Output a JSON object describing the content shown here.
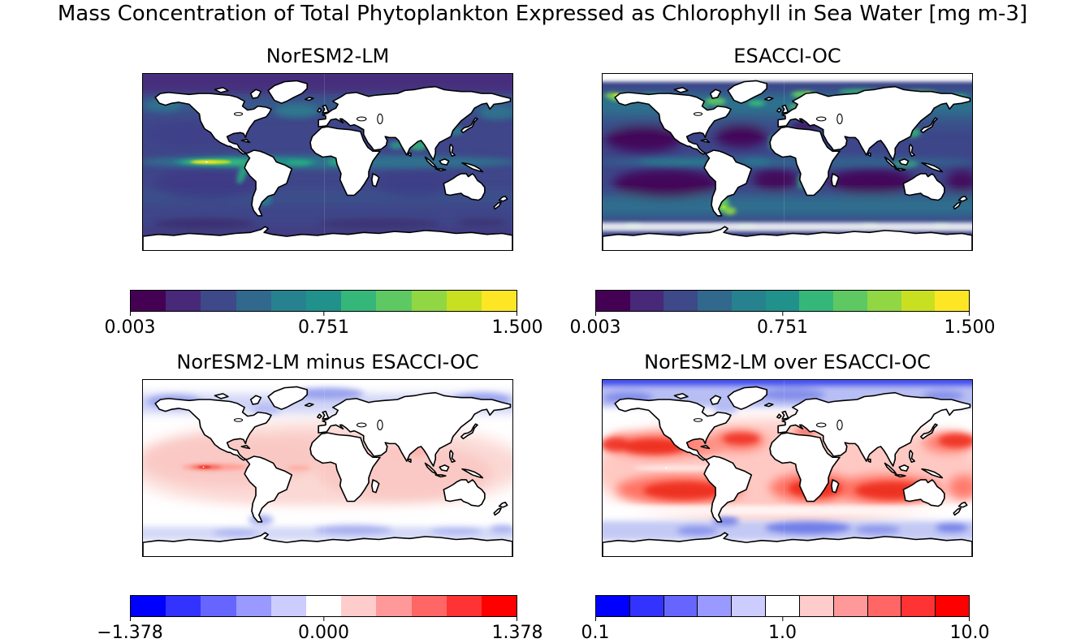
{
  "figure": {
    "title": "Mass Concentration of Total Phytoplankton Expressed as Chlorophyll in Sea Water [mg m-3]",
    "background": "#ffffff",
    "n_panels": 4
  },
  "chart_data": [
    {
      "type": "heatmap",
      "subtype": "global_map",
      "title": "NorESM2-LM",
      "variable": "Mass Concentration of Total Phytoplankton Expressed as Chlorophyll in Sea Water",
      "units": "mg m-3",
      "projection": "equirectangular",
      "land_color": "#ffffff",
      "coastline_color": "#000000",
      "colormap": "viridis",
      "n_levels": 11,
      "vmin": 0.003,
      "vmax": 1.5,
      "colorbar": {
        "orientation": "horizontal",
        "tick_labels": [
          "0.003",
          "0.751",
          "1.500"
        ],
        "tick_values": [
          0.003,
          0.751,
          1.5
        ],
        "cell_borders": false,
        "colors": [
          "#440154",
          "#482878",
          "#3e4989",
          "#31688e",
          "#26828e",
          "#21918c",
          "#35b779",
          "#5ec962",
          "#90d743",
          "#c8e020",
          "#fde725"
        ]
      },
      "features": [
        "bright high-chlorophyll tongue (~1.5 mg m-3, yellow) along the eastern equatorial Pacific",
        "greenish coastal/upwelling maxima near Peru, Gulf of Guinea, Bay of Bengal and Argentine shelf",
        "moderate teal values across mid-latitude oceans",
        "dark purple low values in Arctic band, subtropical gyres and Southern Ocean"
      ]
    },
    {
      "type": "heatmap",
      "subtype": "global_map",
      "title": "ESACCI-OC",
      "variable": "Mass Concentration of Total Phytoplankton Expressed as Chlorophyll in Sea Water",
      "units": "mg m-3",
      "projection": "equirectangular",
      "land_color": "#ffffff",
      "coastline_color": "#000000",
      "colormap": "viridis",
      "n_levels": 11,
      "vmin": 0.003,
      "vmax": 1.5,
      "colorbar": {
        "orientation": "horizontal",
        "tick_labels": [
          "0.003",
          "0.751",
          "1.500"
        ],
        "tick_values": [
          0.003,
          0.751,
          1.5
        ],
        "cell_borders": false,
        "colors": [
          "#440154",
          "#482878",
          "#3e4989",
          "#31688e",
          "#26828e",
          "#21918c",
          "#35b779",
          "#5ec962",
          "#90d743",
          "#c8e020",
          "#fde725"
        ]
      },
      "features": [
        "very dark purple low chlorophyll in the five subtropical gyres",
        "green/yellow high chlorophyll hugging northern high-latitude coasts and shelves",
        "white no-data band over the central Arctic and fringing Antarctica",
        "teal moderate values in subpolar and Southern Ocean waters"
      ]
    },
    {
      "type": "heatmap",
      "subtype": "global_map_difference",
      "title": "NorESM2-LM minus ESACCI-OC",
      "variable": "chlorophyll difference (model minus observations)",
      "units": "mg m-3",
      "projection": "equirectangular",
      "land_color": "#ffffff",
      "coastline_color": "#000000",
      "colormap": "bwr",
      "n_levels": 11,
      "vmin": -1.378,
      "vmax": 1.378,
      "colorbar": {
        "orientation": "horizontal",
        "tick_labels": [
          "−1.378",
          "0.000",
          "1.378"
        ],
        "tick_values": [
          -1.378,
          0.0,
          1.378
        ],
        "cell_borders": false,
        "colors": [
          "#0000ff",
          "#3333ff",
          "#6666ff",
          "#9999ff",
          "#ccccff",
          "#ffffff",
          "#ffcccc",
          "#ff9999",
          "#ff6666",
          "#ff3333",
          "#ff0000"
        ]
      },
      "features": [
        "light red positive bias over most tropical and subtropical oceans",
        "strongest positive bias (deep red) in the eastern equatorial Pacific",
        "light blue negative bias at northern high latitudes and parts of the Southern Ocean",
        "near-zero white band around ~45°S"
      ]
    },
    {
      "type": "heatmap",
      "subtype": "global_map_ratio",
      "title": "NorESM2-LM over ESACCI-OC",
      "variable": "chlorophyll ratio (model over observations)",
      "units": "1",
      "projection": "equirectangular",
      "land_color": "#ffffff",
      "coastline_color": "#000000",
      "colormap": "bwr",
      "scale": "log",
      "n_levels": 11,
      "vmin": 0.1,
      "vmax": 10.0,
      "colorbar": {
        "orientation": "horizontal",
        "tick_labels": [
          "0.1",
          "1.0",
          "10.0"
        ],
        "tick_values": [
          0.1,
          1.0,
          10.0
        ],
        "cell_borders": true,
        "colors": [
          "#0000ff",
          "#3333ff",
          "#6666ff",
          "#9999ff",
          "#ccccff",
          "#ffffff",
          "#ffcccc",
          "#ff9999",
          "#ff6666",
          "#ff3333",
          "#ff0000"
        ]
      },
      "features": [
        "deep red ratios up to ~10 across the subtropical gyres of both hemispheres",
        "strong blue band (ratio < 1) along the Arctic margin",
        "blue patches in the Atlantic sector of the Southern Ocean",
        "near-unity white transition bands around ~45°N and ~45°S"
      ]
    }
  ]
}
